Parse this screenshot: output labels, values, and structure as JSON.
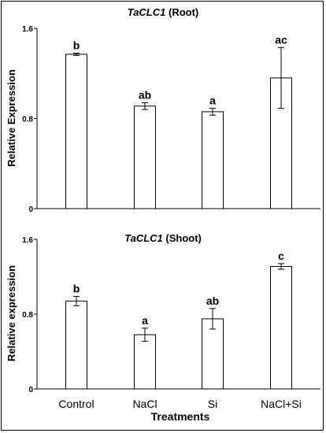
{
  "chart_data": [
    {
      "type": "bar",
      "title_gene": "TaCLC1",
      "title_tissue": " (Root)",
      "ylabel": "Relative Expression",
      "xlabel": "",
      "categories": [
        "Control",
        "NaCl",
        "Si",
        "NaCl+Si"
      ],
      "values": [
        1.37,
        0.91,
        0.86,
        1.16
      ],
      "errors": [
        0.01,
        0.03,
        0.03,
        0.27
      ],
      "significance": [
        "b",
        "ab",
        "a",
        "ac"
      ],
      "ylim": [
        0,
        1.6
      ],
      "yticks": [
        "0",
        "0.8",
        "1.6"
      ],
      "grid": false,
      "bar_color": "#ffffff",
      "edge_color": "#000000"
    },
    {
      "type": "bar",
      "title_gene": "TaCLC1",
      "title_tissue": " (Shoot)",
      "ylabel": "Relative expression",
      "xlabel": "Treatments",
      "categories": [
        "Control",
        "NaCl",
        "Si",
        "NaCl+Si"
      ],
      "values": [
        0.94,
        0.58,
        0.75,
        1.31
      ],
      "errors": [
        0.05,
        0.07,
        0.11,
        0.03
      ],
      "significance": [
        "b",
        "a",
        "ab",
        "c"
      ],
      "ylim": [
        0,
        1.6
      ],
      "yticks": [
        "0",
        "0.8",
        "1.6"
      ],
      "grid": false,
      "bar_color": "#ffffff",
      "edge_color": "#000000"
    }
  ]
}
